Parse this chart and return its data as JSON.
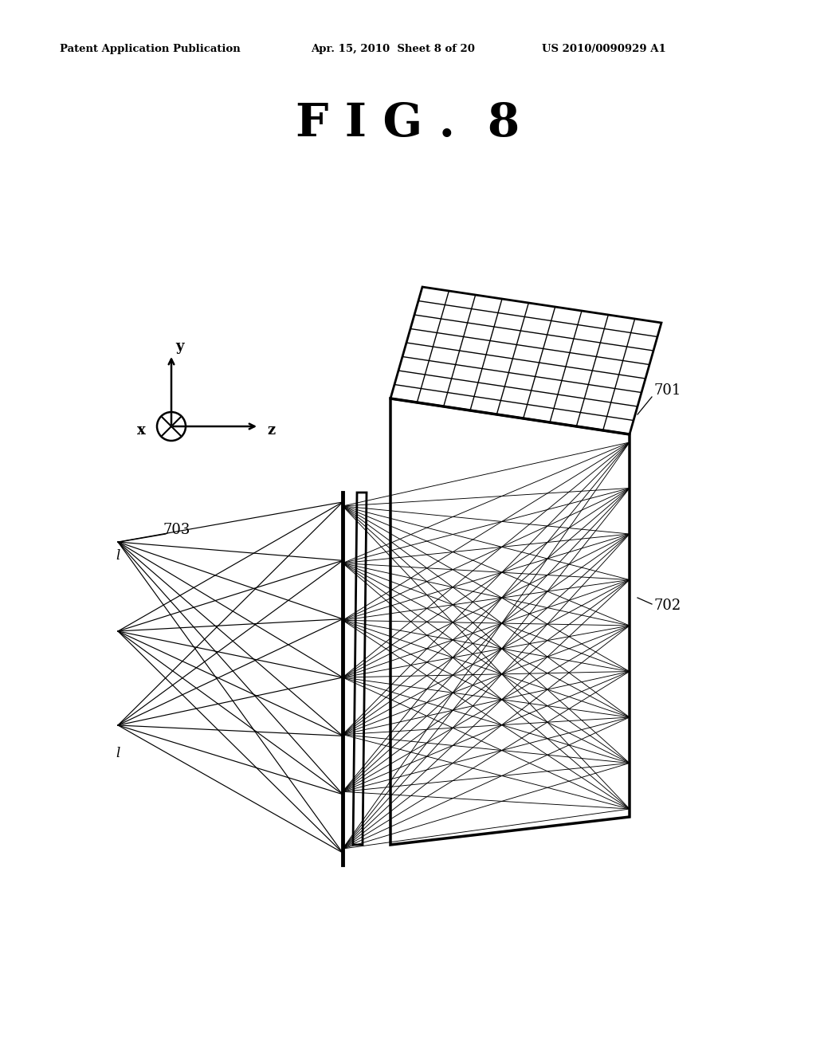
{
  "header_left": "Patent Application Publication",
  "header_middle": "Apr. 15, 2010  Sheet 8 of 20",
  "header_right": "US 2010/0090929 A1",
  "title": "F I G .  8",
  "bg_color": "#ffffff",
  "line_color": "#000000",
  "label_701": "701",
  "label_702": "702",
  "label_703": "703",
  "label_l": "l"
}
